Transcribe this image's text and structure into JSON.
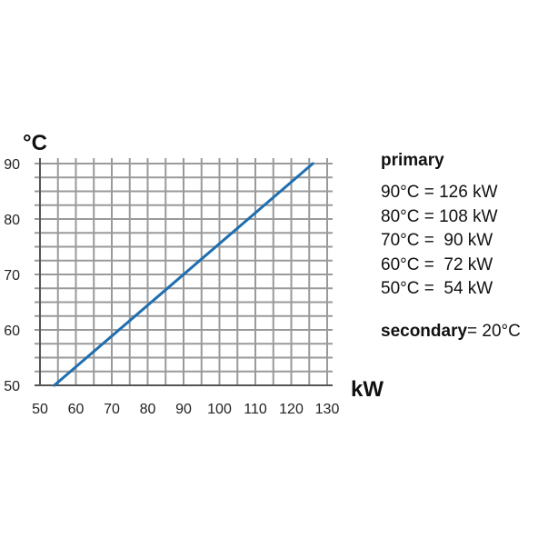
{
  "chart_data": {
    "type": "line",
    "x": [
      54,
      126
    ],
    "series": [
      {
        "values": [
          50,
          90
        ],
        "color": "#1f6fb0"
      }
    ],
    "xlim": [
      50,
      130
    ],
    "ylim": [
      50,
      90
    ],
    "x_ticks": [
      50,
      60,
      70,
      80,
      90,
      100,
      110,
      120,
      130
    ],
    "y_ticks": [
      50,
      60,
      70,
      80,
      90
    ],
    "xlabel": "kW",
    "ylabel": "°C",
    "grid": true
  },
  "legend": {
    "title": "primary",
    "rows": [
      "90°C = 126 kW",
      "80°C = 108 kW",
      "70°C =  90 kW",
      "60°C =  72 kW",
      "50°C =  54 kW"
    ],
    "secondary_label": "secondary",
    "secondary_value": "= 20°C"
  }
}
